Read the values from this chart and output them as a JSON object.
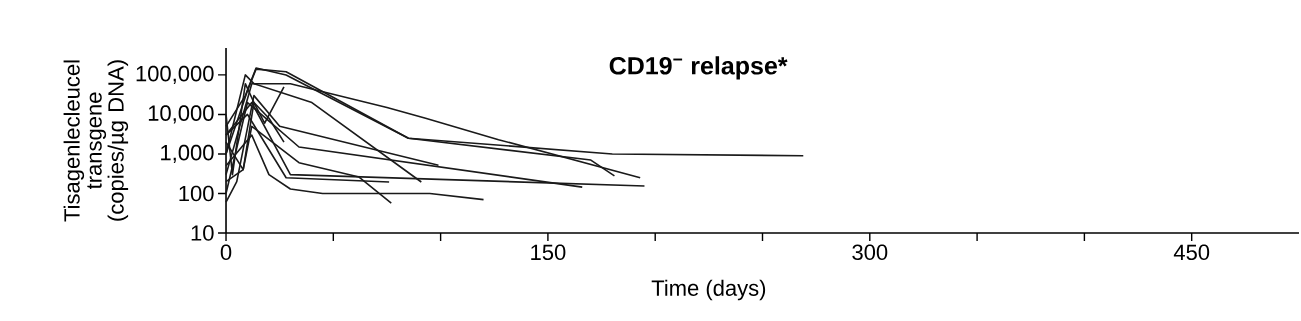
{
  "chart_data": {
    "type": "line",
    "title": "CD19$^{−}$ relapse*",
    "xlabel": "Time (days)",
    "ylabel": "Tisagenlecleucel transgene (copies/µg DNA)",
    "log": "y",
    "grid": false,
    "marker": "none",
    "line_style": "solid",
    "xlim": [
      0,
      500
    ],
    "xticks": [
      0,
      {
        "value": 50,
        "label": null
      },
      {
        "value": 100,
        "label": null
      },
      150,
      {
        "value": 200,
        "label": null
      },
      {
        "value": 250,
        "label": null
      },
      300,
      {
        "value": 350,
        "label": null
      },
      {
        "value": 400,
        "label": null
      },
      450
    ],
    "ylim": [
      10,
      480000
    ],
    "yticks": [
      {
        "value": 10,
        "label": "10"
      },
      {
        "value": 100,
        "label": "100"
      },
      {
        "value": 1000,
        "label": "1,000"
      },
      {
        "value": 10000,
        "label": "10,000"
      },
      {
        "value": 100000,
        "label": "100,000"
      }
    ],
    "series": [
      {
        "color": "#1a1a1a",
        "x": [
          0,
          9,
          14,
          28,
          85,
          180,
          269
        ],
        "values": [
          5000,
          30000,
          150000,
          100000,
          2500,
          1000,
          900
        ]
      },
      {
        "color": "#1a1a1a",
        "x": [
          0,
          10,
          14,
          28,
          85,
          170,
          181
        ],
        "values": [
          1000,
          40000,
          140000,
          120000,
          2500,
          700,
          280
        ]
      },
      {
        "color": "#1a1a1a",
        "x": [
          0,
          12,
          30,
          75,
          93,
          127,
          193
        ],
        "values": [
          300,
          60000,
          60000,
          15000,
          8000,
          2300,
          250
        ]
      },
      {
        "color": "#1a1a1a",
        "x": [
          0,
          12,
          30,
          195
        ],
        "values": [
          3000,
          20000,
          300,
          155
        ]
      },
      {
        "color": "#1a1a1a",
        "x": [
          0,
          10,
          34,
          166
        ],
        "values": [
          100,
          20000,
          1500,
          145
        ]
      },
      {
        "color": "#1a1a1a",
        "x": [
          0,
          5,
          13,
          25,
          99
        ],
        "values": [
          60,
          200,
          30000,
          5000,
          520
        ]
      },
      {
        "color": "#1a1a1a",
        "x": [
          0,
          9,
          13,
          40,
          91
        ],
        "values": [
          1000,
          100000,
          60000,
          20000,
          195
        ]
      },
      {
        "color": "#1a1a1a",
        "x": [
          0,
          8,
          12,
          34,
          62,
          77
        ],
        "values": [
          200,
          400,
          5000,
          600,
          260,
          57
        ]
      },
      {
        "color": "#1a1a1a",
        "x": [
          0,
          12,
          20,
          30,
          45,
          95,
          120
        ],
        "values": [
          500,
          3000,
          300,
          130,
          100,
          100,
          70
        ]
      },
      {
        "color": "#1a1a1a",
        "x": [
          0,
          10,
          28,
          76
        ],
        "values": [
          3000,
          10000,
          250,
          195
        ]
      },
      {
        "color": "#1a1a1a",
        "x": [
          0,
          8,
          13,
          18,
          27
        ],
        "values": [
          2000,
          400,
          20000,
          6000,
          50000
        ]
      },
      {
        "color": "#1a1a1a",
        "x": [
          0,
          3,
          9,
          13,
          20,
          27
        ],
        "values": [
          10000,
          300,
          60000,
          20000,
          8000,
          2000
        ]
      }
    ]
  }
}
